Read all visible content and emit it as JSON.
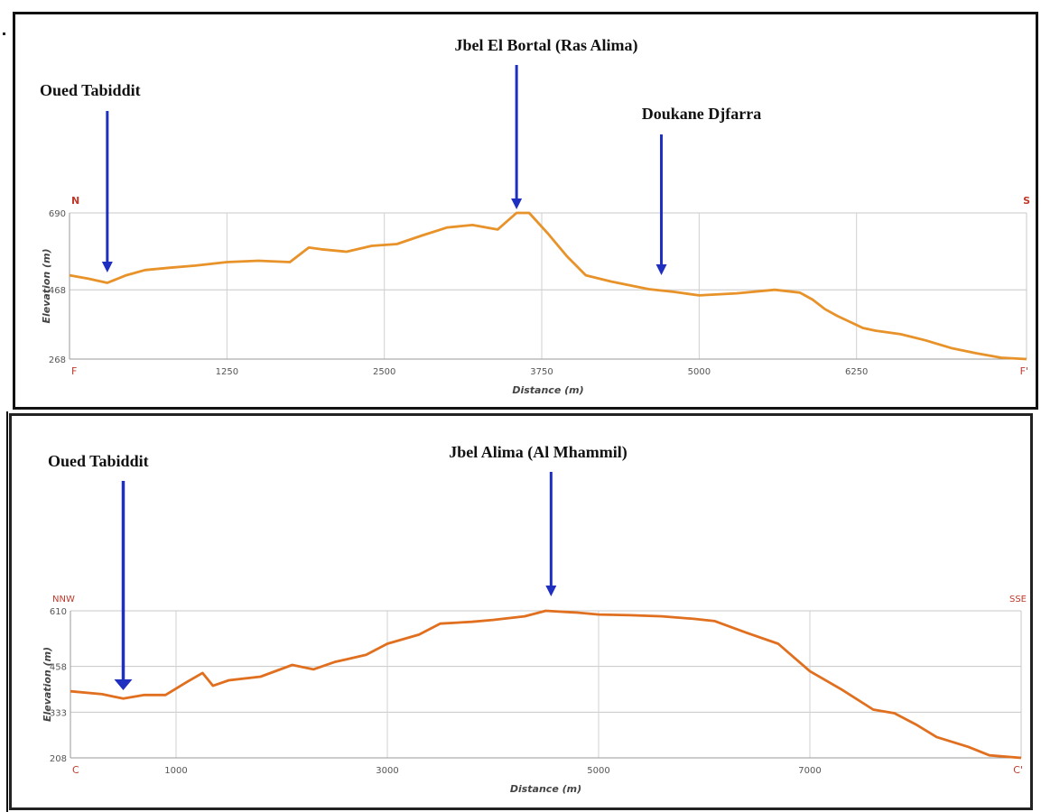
{
  "chart_data": [
    {
      "type": "line",
      "annotations": [
        "Oued Tabiddit",
        "Jbel El Bortal (Ras Alima)",
        "Doukane Djfarra"
      ],
      "annotation_x": [
        300,
        3550,
        4700
      ],
      "direction_start": "N",
      "direction_end": "S",
      "profile_start": "F",
      "profile_end": "F'",
      "xlabel": "Distance (m)",
      "ylabel": "Elevation (m)",
      "xlim": [
        0,
        7600
      ],
      "ylim": [
        268,
        690
      ],
      "x_ticks": [
        1250,
        2500,
        3750,
        5000,
        6250
      ],
      "y_ticks": [
        268,
        468,
        690
      ],
      "series": [
        {
          "color": "#E8922A",
          "x": [
            0,
            150,
            300,
            450,
            600,
            800,
            1000,
            1250,
            1500,
            1750,
            1900,
            2000,
            2200,
            2400,
            2600,
            2800,
            3000,
            3200,
            3400,
            3550,
            3650,
            3800,
            3950,
            4100,
            4300,
            4600,
            4800,
            5000,
            5300,
            5600,
            5800,
            5900,
            6000,
            6100,
            6200,
            6300,
            6400,
            6600,
            6800,
            7000,
            7200,
            7400,
            7600
          ],
          "values": [
            510,
            500,
            488,
            510,
            525,
            532,
            538,
            548,
            552,
            548,
            590,
            585,
            578,
            595,
            600,
            625,
            648,
            655,
            642,
            690,
            690,
            630,
            565,
            510,
            492,
            470,
            462,
            452,
            458,
            468,
            460,
            440,
            412,
            392,
            375,
            358,
            350,
            340,
            322,
            300,
            285,
            272,
            268
          ]
        }
      ]
    },
    {
      "type": "line",
      "annotations": [
        "Oued Tabiddit",
        "Jbel Alima (Al Mhammil)"
      ],
      "annotation_x": [
        500,
        4550
      ],
      "direction_start": "NNW",
      "direction_end": "SSE",
      "profile_start": "C",
      "profile_end": "C'",
      "xlabel": "Distance (m)",
      "ylabel": "Elevation (m)",
      "xlim": [
        0,
        9000
      ],
      "ylim": [
        208,
        610
      ],
      "x_ticks": [
        1000,
        3000,
        5000,
        7000
      ],
      "y_ticks": [
        208,
        333,
        458,
        610
      ],
      "series": [
        {
          "color": "#E07020",
          "x": [
            0,
            300,
            500,
            700,
            900,
            1100,
            1250,
            1350,
            1500,
            1800,
            2100,
            2300,
            2500,
            2800,
            3000,
            3300,
            3500,
            3800,
            4000,
            4300,
            4500,
            4800,
            5000,
            5300,
            5600,
            5900,
            6100,
            6400,
            6700,
            7000,
            7300,
            7600,
            7800,
            8000,
            8200,
            8500,
            8700,
            9000
          ],
          "values": [
            390,
            382,
            370,
            380,
            380,
            415,
            440,
            405,
            420,
            430,
            462,
            450,
            470,
            490,
            520,
            545,
            575,
            580,
            585,
            595,
            610,
            605,
            600,
            598,
            595,
            588,
            582,
            550,
            520,
            445,
            395,
            340,
            330,
            300,
            265,
            238,
            215,
            208
          ]
        }
      ]
    }
  ]
}
